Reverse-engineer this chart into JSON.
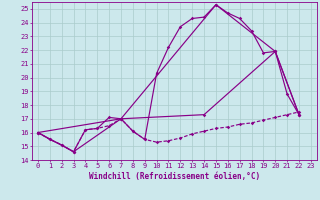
{
  "bg_color": "#cce8ec",
  "grid_color": "#aacccc",
  "line_color": "#880088",
  "xlim": [
    -0.5,
    23.5
  ],
  "ylim": [
    14,
    25.5
  ],
  "xticks": [
    0,
    1,
    2,
    3,
    4,
    5,
    6,
    7,
    8,
    9,
    10,
    11,
    12,
    13,
    14,
    15,
    16,
    17,
    18,
    19,
    20,
    21,
    22,
    23
  ],
  "yticks": [
    14,
    15,
    16,
    17,
    18,
    19,
    20,
    21,
    22,
    23,
    24,
    25
  ],
  "xlabel": "Windchill (Refroidissement éolien,°C)",
  "xlabel_fontsize": 5.5,
  "tick_fontsize": 5.0,
  "line_width": 0.85,
  "marker_size": 1.8,
  "figsize": [
    3.2,
    2.0
  ],
  "dpi": 100,
  "line1_x": [
    0,
    1,
    2,
    3,
    4,
    5,
    6,
    7,
    8,
    9,
    10,
    11,
    12,
    13,
    14,
    15,
    16,
    17,
    18,
    19,
    20,
    21,
    22
  ],
  "line1_y": [
    16.0,
    15.5,
    15.1,
    14.6,
    16.2,
    16.3,
    17.1,
    17.0,
    16.1,
    15.5,
    20.3,
    22.2,
    23.7,
    24.3,
    24.4,
    25.3,
    24.7,
    24.3,
    23.4,
    21.8,
    21.9,
    18.8,
    17.3
  ],
  "line2_x": [
    0,
    1,
    2,
    3,
    4,
    5,
    6,
    7,
    8,
    9,
    10,
    11,
    12,
    13,
    14,
    15,
    16,
    17,
    18,
    19,
    20,
    21,
    22
  ],
  "line2_y": [
    16.0,
    15.5,
    15.1,
    14.6,
    16.2,
    16.3,
    16.5,
    17.0,
    16.1,
    15.5,
    15.3,
    15.4,
    15.6,
    15.9,
    16.1,
    16.3,
    16.4,
    16.6,
    16.7,
    16.9,
    17.1,
    17.3,
    17.5
  ],
  "line3_x": [
    0,
    7,
    15,
    20,
    22
  ],
  "line3_y": [
    16.0,
    17.0,
    25.3,
    21.9,
    17.3
  ],
  "line4_x": [
    0,
    3,
    7,
    14,
    20,
    22
  ],
  "line4_y": [
    16.0,
    14.6,
    17.0,
    17.3,
    21.9,
    17.3
  ]
}
